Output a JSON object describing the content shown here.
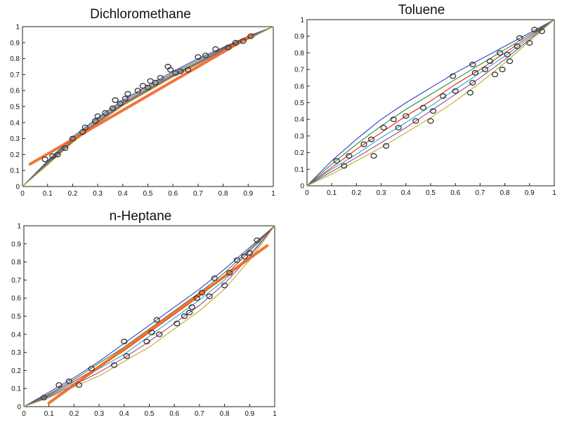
{
  "colors": {
    "blue": "#3a3ac8",
    "green": "#2e8b2e",
    "red": "#e02020",
    "cyan": "#20b0b0",
    "purple": "#a040a0",
    "olive": "#b8b020",
    "orange": "#f26522",
    "marker": "#333333"
  },
  "chart_data": [
    {
      "type": "scatter",
      "title": "Dichloromethane",
      "xlabel": "",
      "ylabel": "",
      "xlim": [
        0,
        1
      ],
      "ylim": [
        0,
        1
      ],
      "xticks": [
        "0",
        "0.1",
        "0.2",
        "0.3",
        "0.4",
        "0.5",
        "0.6",
        "0.7",
        "0.8",
        "0.9",
        "1"
      ],
      "yticks": [
        "0",
        "0.1",
        "0.2",
        "0.3",
        "0.4",
        "0.5",
        "0.6",
        "0.7",
        "0.8",
        "0.9",
        "1"
      ],
      "curves": [
        {
          "color": "blue",
          "x": [
            0,
            0.1,
            0.2,
            0.3,
            0.4,
            0.5,
            0.6,
            0.7,
            0.8,
            0.9,
            1.0
          ],
          "y": [
            0,
            0.16,
            0.31,
            0.43,
            0.54,
            0.63,
            0.72,
            0.8,
            0.87,
            0.94,
            1.0
          ]
        },
        {
          "color": "green",
          "x": [
            0,
            0.1,
            0.2,
            0.3,
            0.4,
            0.5,
            0.6,
            0.7,
            0.8,
            0.9,
            1.0
          ],
          "y": [
            0,
            0.155,
            0.3,
            0.42,
            0.53,
            0.62,
            0.71,
            0.79,
            0.865,
            0.935,
            1.0
          ]
        },
        {
          "color": "red",
          "x": [
            0,
            0.1,
            0.2,
            0.3,
            0.4,
            0.5,
            0.6,
            0.7,
            0.8,
            0.9,
            1.0
          ],
          "y": [
            0,
            0.15,
            0.29,
            0.41,
            0.52,
            0.61,
            0.7,
            0.78,
            0.86,
            0.93,
            1.0
          ]
        },
        {
          "color": "cyan",
          "x": [
            0,
            0.1,
            0.2,
            0.3,
            0.4,
            0.5,
            0.6,
            0.7,
            0.8,
            0.9,
            1.0
          ],
          "y": [
            0,
            0.145,
            0.285,
            0.405,
            0.515,
            0.605,
            0.695,
            0.775,
            0.855,
            0.93,
            1.0
          ]
        },
        {
          "color": "purple",
          "x": [
            0,
            0.1,
            0.2,
            0.3,
            0.4,
            0.5,
            0.6,
            0.7,
            0.8,
            0.9,
            1.0
          ],
          "y": [
            0,
            0.14,
            0.28,
            0.4,
            0.51,
            0.6,
            0.69,
            0.77,
            0.85,
            0.925,
            1.0
          ]
        },
        {
          "color": "olive",
          "x": [
            0,
            0.1,
            0.2,
            0.3,
            0.4,
            0.5,
            0.6,
            0.7,
            0.8,
            0.9,
            1.0
          ],
          "y": [
            0,
            0.135,
            0.275,
            0.395,
            0.505,
            0.595,
            0.685,
            0.765,
            0.845,
            0.92,
            1.0
          ]
        },
        {
          "color": "orange",
          "thick": true,
          "x": [
            0.03,
            0.92
          ],
          "y": [
            0.14,
            0.95
          ]
        }
      ],
      "points": {
        "x": [
          0.09,
          0.12,
          0.14,
          0.17,
          0.2,
          0.24,
          0.25,
          0.29,
          0.3,
          0.33,
          0.36,
          0.37,
          0.39,
          0.41,
          0.42,
          0.46,
          0.48,
          0.5,
          0.51,
          0.53,
          0.55,
          0.58,
          0.59,
          0.61,
          0.63,
          0.66,
          0.7,
          0.73,
          0.77,
          0.82,
          0.85,
          0.88,
          0.91
        ],
        "y": [
          0.17,
          0.19,
          0.2,
          0.24,
          0.3,
          0.34,
          0.37,
          0.41,
          0.44,
          0.46,
          0.49,
          0.54,
          0.52,
          0.55,
          0.58,
          0.6,
          0.63,
          0.62,
          0.66,
          0.65,
          0.68,
          0.75,
          0.73,
          0.71,
          0.72,
          0.73,
          0.81,
          0.82,
          0.86,
          0.87,
          0.9,
          0.91,
          0.94
        ]
      }
    },
    {
      "type": "scatter",
      "title": "Toluene",
      "xlabel": "",
      "ylabel": "",
      "xlim": [
        0,
        1
      ],
      "ylim": [
        0,
        1
      ],
      "xticks": [
        "0",
        "0.1",
        "0.2",
        "0.3",
        "0.4",
        "0.5",
        "0.6",
        "0.7",
        "0.8",
        "0.9",
        "1"
      ],
      "yticks": [
        "0",
        "0.1",
        "0.2",
        "0.3",
        "0.4",
        "0.5",
        "0.6",
        "0.7",
        "0.8",
        "0.9",
        "1"
      ],
      "curves": [
        {
          "color": "blue",
          "x": [
            0,
            0.1,
            0.2,
            0.3,
            0.4,
            0.5,
            0.6,
            0.7,
            0.8,
            0.9,
            1.0
          ],
          "y": [
            0,
            0.15,
            0.28,
            0.4,
            0.5,
            0.59,
            0.68,
            0.76,
            0.84,
            0.92,
            1.0
          ]
        },
        {
          "color": "green",
          "x": [
            0,
            0.1,
            0.2,
            0.3,
            0.4,
            0.5,
            0.6,
            0.7,
            0.8,
            0.9,
            1.0
          ],
          "y": [
            0,
            0.13,
            0.25,
            0.36,
            0.46,
            0.55,
            0.64,
            0.73,
            0.82,
            0.91,
            1.0
          ]
        },
        {
          "color": "red",
          "x": [
            0,
            0.1,
            0.2,
            0.3,
            0.4,
            0.5,
            0.6,
            0.7,
            0.8,
            0.9,
            1.0
          ],
          "y": [
            0,
            0.11,
            0.22,
            0.32,
            0.42,
            0.51,
            0.61,
            0.7,
            0.8,
            0.9,
            1.0
          ]
        },
        {
          "color": "cyan",
          "x": [
            0,
            0.1,
            0.2,
            0.3,
            0.4,
            0.5,
            0.6,
            0.7,
            0.8,
            0.9,
            1.0
          ],
          "y": [
            0,
            0.1,
            0.19,
            0.29,
            0.38,
            0.48,
            0.58,
            0.68,
            0.78,
            0.89,
            1.0
          ]
        },
        {
          "color": "purple",
          "x": [
            0,
            0.1,
            0.2,
            0.3,
            0.4,
            0.5,
            0.6,
            0.7,
            0.8,
            0.9,
            1.0
          ],
          "y": [
            0,
            0.085,
            0.17,
            0.26,
            0.35,
            0.45,
            0.55,
            0.65,
            0.76,
            0.88,
            1.0
          ]
        },
        {
          "color": "olive",
          "x": [
            0,
            0.1,
            0.2,
            0.3,
            0.4,
            0.5,
            0.6,
            0.7,
            0.8,
            0.9,
            1.0
          ],
          "y": [
            0,
            0.07,
            0.15,
            0.23,
            0.32,
            0.41,
            0.51,
            0.62,
            0.74,
            0.87,
            1.0
          ]
        }
      ],
      "points": {
        "x": [
          0.12,
          0.15,
          0.17,
          0.23,
          0.26,
          0.27,
          0.31,
          0.32,
          0.35,
          0.37,
          0.4,
          0.44,
          0.47,
          0.5,
          0.51,
          0.55,
          0.59,
          0.6,
          0.66,
          0.67,
          0.67,
          0.68,
          0.72,
          0.74,
          0.76,
          0.78,
          0.79,
          0.81,
          0.82,
          0.85,
          0.86,
          0.9,
          0.92,
          0.95
        ],
        "y": [
          0.15,
          0.12,
          0.18,
          0.25,
          0.28,
          0.18,
          0.35,
          0.24,
          0.4,
          0.35,
          0.42,
          0.39,
          0.47,
          0.39,
          0.45,
          0.54,
          0.66,
          0.57,
          0.56,
          0.73,
          0.62,
          0.68,
          0.7,
          0.75,
          0.67,
          0.8,
          0.7,
          0.79,
          0.75,
          0.84,
          0.89,
          0.86,
          0.94,
          0.93
        ]
      }
    },
    {
      "type": "scatter",
      "title": "n-Heptane",
      "xlabel": "",
      "ylabel": "",
      "xlim": [
        0,
        1
      ],
      "ylim": [
        0,
        1
      ],
      "xticks": [
        "0",
        "0.1",
        "0.2",
        "0.3",
        "0.4",
        "0.5",
        "0.6",
        "0.7",
        "0.8",
        "0.9",
        "1"
      ],
      "yticks": [
        "0",
        "0.1",
        "0.2",
        "0.3",
        "0.4",
        "0.5",
        "0.6",
        "0.7",
        "0.8",
        "0.9",
        "1"
      ],
      "curves": [
        {
          "color": "blue",
          "x": [
            0,
            0.1,
            0.2,
            0.3,
            0.4,
            0.5,
            0.6,
            0.7,
            0.8,
            0.9,
            1.0
          ],
          "y": [
            0,
            0.08,
            0.16,
            0.25,
            0.35,
            0.45,
            0.55,
            0.65,
            0.76,
            0.88,
            1.0
          ]
        },
        {
          "color": "green",
          "x": [
            0,
            0.1,
            0.2,
            0.3,
            0.4,
            0.5,
            0.6,
            0.7,
            0.8,
            0.9,
            1.0
          ],
          "y": [
            0,
            0.07,
            0.15,
            0.24,
            0.33,
            0.43,
            0.53,
            0.63,
            0.74,
            0.87,
            1.0
          ]
        },
        {
          "color": "red",
          "x": [
            0,
            0.1,
            0.2,
            0.3,
            0.4,
            0.5,
            0.6,
            0.7,
            0.8,
            0.9,
            1.0
          ],
          "y": [
            0,
            0.065,
            0.14,
            0.22,
            0.31,
            0.41,
            0.51,
            0.61,
            0.72,
            0.86,
            1.0
          ]
        },
        {
          "color": "cyan",
          "x": [
            0,
            0.1,
            0.2,
            0.3,
            0.4,
            0.5,
            0.6,
            0.7,
            0.8,
            0.9,
            1.0
          ],
          "y": [
            0,
            0.06,
            0.13,
            0.21,
            0.29,
            0.39,
            0.49,
            0.59,
            0.7,
            0.84,
            1.0
          ]
        },
        {
          "color": "purple",
          "x": [
            0,
            0.1,
            0.2,
            0.3,
            0.4,
            0.5,
            0.6,
            0.7,
            0.8,
            0.9,
            1.0
          ],
          "y": [
            0,
            0.055,
            0.12,
            0.19,
            0.27,
            0.36,
            0.46,
            0.56,
            0.68,
            0.83,
            1.0
          ]
        },
        {
          "color": "olive",
          "x": [
            0,
            0.1,
            0.2,
            0.3,
            0.4,
            0.5,
            0.6,
            0.7,
            0.8,
            0.9,
            1.0
          ],
          "y": [
            0,
            0.05,
            0.11,
            0.17,
            0.25,
            0.33,
            0.43,
            0.53,
            0.65,
            0.81,
            1.0
          ]
        },
        {
          "color": "orange",
          "thick": true,
          "x": [
            0.1,
            0.97
          ],
          "y": [
            0.02,
            0.89
          ]
        }
      ],
      "points": {
        "x": [
          0.08,
          0.14,
          0.18,
          0.22,
          0.27,
          0.36,
          0.4,
          0.41,
          0.49,
          0.51,
          0.53,
          0.54,
          0.61,
          0.64,
          0.66,
          0.67,
          0.69,
          0.71,
          0.74,
          0.76,
          0.8,
          0.82,
          0.85,
          0.88,
          0.9,
          0.93
        ],
        "y": [
          0.05,
          0.12,
          0.14,
          0.12,
          0.21,
          0.23,
          0.36,
          0.28,
          0.36,
          0.41,
          0.48,
          0.4,
          0.46,
          0.5,
          0.52,
          0.55,
          0.6,
          0.63,
          0.61,
          0.71,
          0.67,
          0.74,
          0.81,
          0.83,
          0.85,
          0.92
        ]
      }
    }
  ]
}
